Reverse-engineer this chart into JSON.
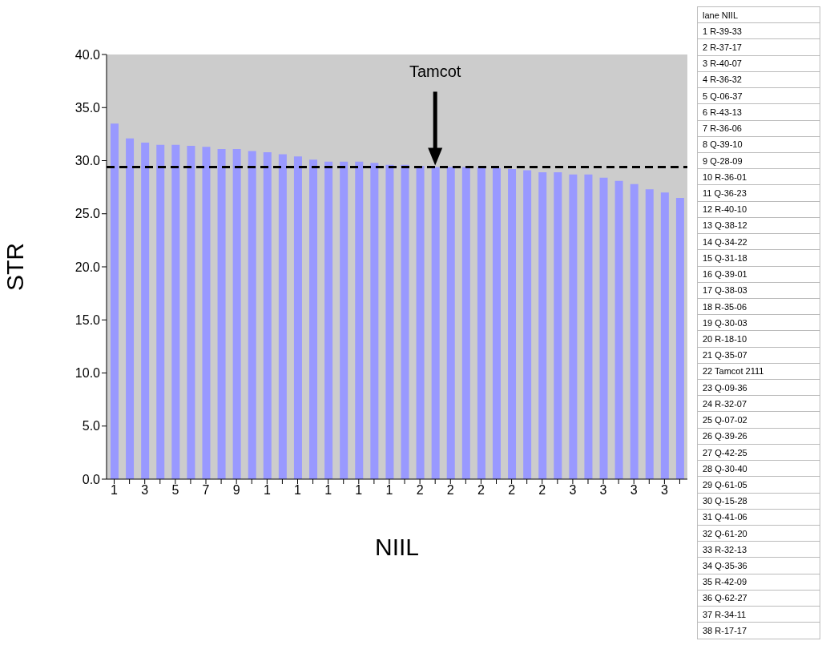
{
  "chart_data": {
    "type": "bar",
    "xlabel": "NIIL",
    "ylabel": "STR",
    "categories": [
      "1",
      null,
      "3",
      null,
      "5",
      null,
      "7",
      null,
      "9",
      null,
      "1",
      null,
      "1",
      null,
      "1",
      null,
      "1",
      null,
      "1",
      null,
      "2",
      null,
      "2",
      null,
      "2",
      null,
      "2",
      null,
      "2",
      null,
      "3",
      null,
      "3",
      null,
      "3",
      null,
      "3",
      null
    ],
    "values": [
      33.5,
      32.1,
      31.7,
      31.5,
      31.5,
      31.4,
      31.3,
      31.1,
      31.1,
      30.9,
      30.8,
      30.6,
      30.4,
      30.1,
      29.9,
      29.9,
      29.9,
      29.8,
      29.6,
      29.6,
      29.5,
      29.4,
      29.4,
      29.4,
      29.4,
      29.3,
      29.2,
      29.1,
      28.9,
      28.9,
      28.7,
      28.7,
      28.4,
      28.1,
      27.8,
      27.3,
      27.0,
      26.5
    ],
    "color": "#9999ff",
    "ylim": [
      0,
      40
    ],
    "yticks": [
      {
        "value": 0,
        "label": "0.0"
      },
      {
        "value": 5,
        "label": "5.0"
      },
      {
        "value": 10,
        "label": "10.0"
      },
      {
        "value": 15,
        "label": "15.0"
      },
      {
        "value": 20,
        "label": "20.0"
      },
      {
        "value": 25,
        "label": "25.0"
      },
      {
        "value": 30,
        "label": "30.0"
      },
      {
        "value": 35,
        "label": "35.0"
      },
      {
        "value": 40,
        "label": "40.0"
      }
    ],
    "ref_lines": [
      {
        "axis": "y",
        "value": 29.4,
        "line_style": "dashed",
        "color": "#000000"
      }
    ],
    "annotations": [
      "Tamcot",
      "lane NIIL",
      "1 R-39-33",
      "2 R-37-17",
      "3 R-40-07",
      "4 R-36-32",
      "5 Q-06-37",
      "6 R-43-13",
      "7 R-36-06",
      "8 Q-39-10",
      "9 Q-28-09",
      "10 R-36-01",
      "11 Q-36-23",
      "12 R-40-10",
      "13 Q-38-12",
      "14 Q-34-22",
      "15 Q-31-18",
      "16 Q-39-01",
      "17 Q-38-03",
      "18 R-35-06",
      "19 Q-30-03",
      "20 R-18-10",
      "21 Q-35-07",
      "22 Tamcot 2111",
      "23 Q-09-36",
      "24 R-32-07",
      "25 Q-07-02",
      "26 Q-39-26",
      "27 Q-42-25",
      "28 Q-30-40",
      "29 Q-61-05",
      "30 Q-15-28",
      "31 Q-41-06",
      "32 Q-61-20",
      "33 R-32-13",
      "34 Q-35-36",
      "35 R-42-09",
      "36 Q-62-27",
      "37 R-34-11",
      "38 R-17-17"
    ]
  }
}
